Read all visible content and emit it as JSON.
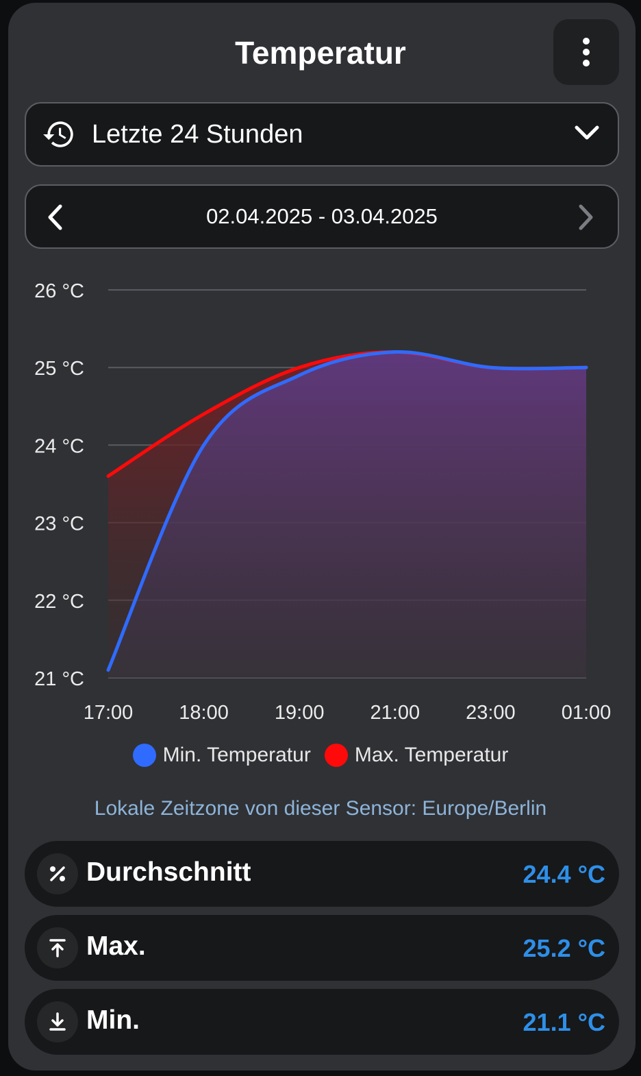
{
  "header": {
    "title": "Temperatur"
  },
  "period_select": {
    "value": "Letzte 24 Stunden"
  },
  "date_range": {
    "text": "02.04.2025 - 03.04.2025"
  },
  "colors": {
    "background": "#303135",
    "min_series": "#2f6bff",
    "max_series": "#ff0a0a",
    "stat_value": "#2e8fe8",
    "timezone_text": "#8db4d9"
  },
  "icons": {
    "menu": "dots-vertical-icon",
    "period": "history-icon",
    "dropdown": "chevron-down-icon",
    "prev": "chevron-left-icon",
    "next": "chevron-right-icon",
    "average": "percent-icon",
    "max": "arrow-collapse-up-icon",
    "min": "arrow-collapse-down-icon"
  },
  "chart_data": {
    "type": "area",
    "x": [
      "17:00",
      "18:00",
      "19:00",
      "21:00",
      "23:00",
      "01:00"
    ],
    "ylim": [
      21,
      26
    ],
    "yticks": [
      21,
      22,
      23,
      24,
      25,
      26
    ],
    "ytick_labels": [
      "21 °C",
      "22 °C",
      "23 °C",
      "24 °C",
      "25 °C",
      "26 °C"
    ],
    "grid": true,
    "legend_position": "bottom",
    "series": [
      {
        "name": "Min. Temperatur",
        "color": "#2f6bff",
        "values": [
          21.1,
          24.0,
          24.9,
          25.2,
          25.0,
          25.0
        ]
      },
      {
        "name": "Max. Temperatur",
        "color": "#ff0a0a",
        "values": [
          23.6,
          24.4,
          25.0,
          25.2,
          25.0,
          25.0
        ]
      }
    ]
  },
  "legend": {
    "min_label": "Min. Temperatur",
    "max_label": "Max. Temperatur"
  },
  "timezone_note": "Lokale Zeitzone von dieser Sensor: Europe/Berlin",
  "stats": {
    "average": {
      "label": "Durchschnitt",
      "value": "24.4 °C"
    },
    "max": {
      "label": "Max.",
      "value": "25.2 °C"
    },
    "min": {
      "label": "Min.",
      "value": "21.1 °C"
    }
  }
}
